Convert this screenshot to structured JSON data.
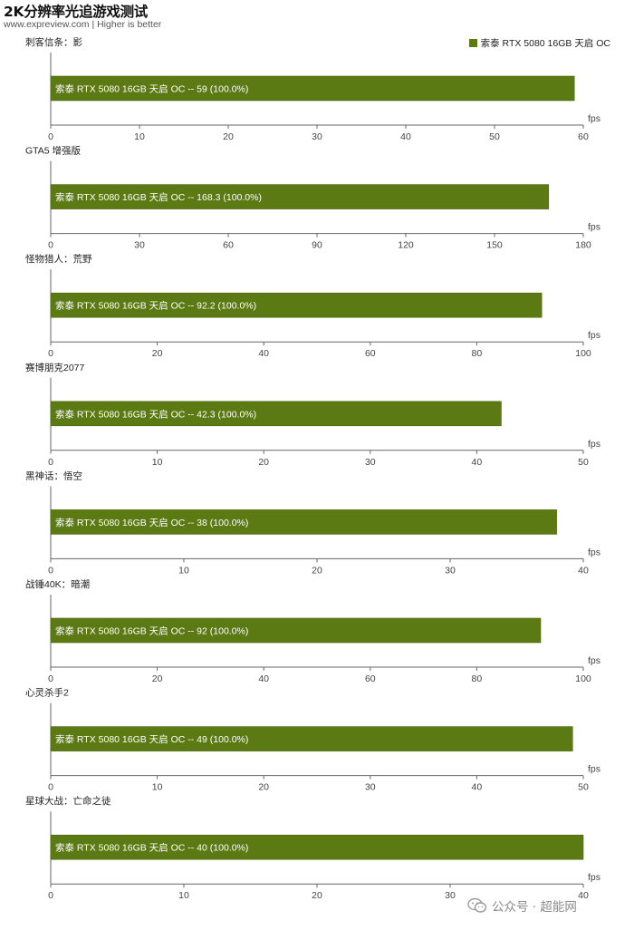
{
  "title": "2K分辨率光追游戏测试",
  "subtitle": "www.expreview.com | Higher is better",
  "watermark": "公众号 · 超能网",
  "colors": {
    "bar": "#5b7a13",
    "bar_border": "#4c660f",
    "axis": "#666666"
  },
  "chart_data": [
    {
      "type": "bar",
      "title": "刺客信条：影",
      "unit": "fps",
      "xlim": [
        0,
        60
      ],
      "ticks": [
        0,
        10,
        20,
        30,
        40,
        50,
        60
      ],
      "series": [
        {
          "name": "索泰 RTX 5080 16GB 天启 OC",
          "values": [
            59
          ],
          "labels": [
            "索泰 RTX 5080 16GB 天启 OC  --  59 (100.0%)"
          ]
        }
      ]
    },
    {
      "type": "bar",
      "title": "GTA5 增强版",
      "unit": "fps",
      "xlim": [
        0,
        180
      ],
      "ticks": [
        0,
        30,
        60,
        90,
        120,
        150,
        180
      ],
      "series": [
        {
          "name": "索泰 RTX 5080 16GB 天启 OC",
          "values": [
            168.3
          ],
          "labels": [
            "索泰 RTX 5080 16GB 天启 OC  --  168.3 (100.0%)"
          ]
        }
      ]
    },
    {
      "type": "bar",
      "title": "怪物猎人：荒野",
      "unit": "fps",
      "xlim": [
        0,
        100
      ],
      "ticks": [
        0,
        20,
        40,
        60,
        80,
        100
      ],
      "series": [
        {
          "name": "索泰 RTX 5080 16GB 天启 OC",
          "values": [
            92.2
          ],
          "labels": [
            "索泰 RTX 5080 16GB 天启 OC  --  92.2 (100.0%)"
          ]
        }
      ]
    },
    {
      "type": "bar",
      "title": "赛博朋克2077",
      "unit": "fps",
      "xlim": [
        0,
        50
      ],
      "ticks": [
        0,
        10,
        20,
        30,
        40,
        50
      ],
      "series": [
        {
          "name": "索泰 RTX 5080 16GB 天启 OC",
          "values": [
            42.3
          ],
          "labels": [
            "索泰 RTX 5080 16GB 天启 OC  --  42.3 (100.0%)"
          ]
        }
      ]
    },
    {
      "type": "bar",
      "title": "黑神话：悟空",
      "unit": "fps",
      "xlim": [
        0,
        40
      ],
      "ticks": [
        0,
        10,
        20,
        30,
        40
      ],
      "series": [
        {
          "name": "索泰 RTX 5080 16GB 天启 OC",
          "values": [
            38
          ],
          "labels": [
            "索泰 RTX 5080 16GB 天启 OC  --  38 (100.0%)"
          ]
        }
      ]
    },
    {
      "type": "bar",
      "title": "战锤40K：暗潮",
      "unit": "fps",
      "xlim": [
        0,
        100
      ],
      "ticks": [
        0,
        20,
        40,
        60,
        80,
        100
      ],
      "series": [
        {
          "name": "索泰 RTX 5080 16GB 天启 OC",
          "values": [
            92
          ],
          "labels": [
            "索泰 RTX 5080 16GB 天启 OC  --  92 (100.0%)"
          ]
        }
      ]
    },
    {
      "type": "bar",
      "title": "心灵杀手2",
      "unit": "fps",
      "xlim": [
        0,
        50
      ],
      "ticks": [
        0,
        10,
        20,
        30,
        40,
        50
      ],
      "series": [
        {
          "name": "索泰 RTX 5080 16GB 天启 OC",
          "values": [
            49
          ],
          "labels": [
            "索泰 RTX 5080 16GB 天启 OC  --  49 (100.0%)"
          ]
        }
      ]
    },
    {
      "type": "bar",
      "title": "星球大战：亡命之徒",
      "unit": "fps",
      "xlim": [
        0,
        40
      ],
      "ticks": [
        0,
        10,
        20,
        30,
        40
      ],
      "series": [
        {
          "name": "索泰 RTX 5080 16GB 天启 OC",
          "values": [
            40
          ],
          "labels": [
            "索泰 RTX 5080 16GB 天启 OC  --  40 (100.0%)"
          ]
        }
      ]
    }
  ]
}
